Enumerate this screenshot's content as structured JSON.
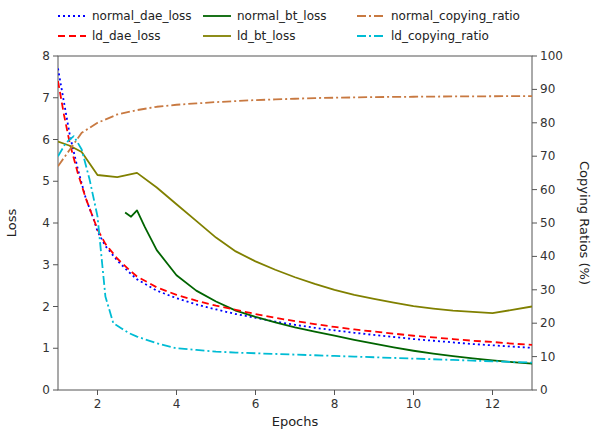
{
  "chart_data": {
    "type": "line",
    "xlabel": "Epochs",
    "ylabel": "Loss",
    "y2label": "Copying Ratios (%)",
    "xlim": [
      1,
      13
    ],
    "xticks": [
      2,
      4,
      6,
      8,
      10,
      12
    ],
    "ylim": [
      0,
      8
    ],
    "yticks": [
      0,
      1,
      2,
      3,
      4,
      5,
      6,
      7,
      8
    ],
    "y2lim": [
      0,
      100
    ],
    "y2ticks": [
      0,
      10,
      20,
      30,
      40,
      50,
      60,
      70,
      80,
      90,
      100
    ],
    "grid": false,
    "legend": "top",
    "series": [
      {
        "name": "normal_dae_loss",
        "color": "#0000ff",
        "line_style": "dotted",
        "x": [
          1.0,
          1.15,
          1.3,
          1.5,
          1.7,
          1.9,
          2.0,
          2.2,
          2.5,
          2.8,
          3.0,
          3.5,
          4.0,
          4.5,
          5.0,
          5.5,
          6.0,
          6.5,
          7.0,
          7.5,
          8.0,
          8.5,
          9.0,
          9.5,
          10.0,
          10.5,
          11.0,
          11.5,
          12.0,
          12.5,
          13.0
        ],
        "values": [
          7.7,
          6.9,
          6.1,
          5.3,
          4.6,
          4.1,
          3.8,
          3.45,
          3.1,
          2.82,
          2.65,
          2.38,
          2.2,
          2.05,
          1.93,
          1.82,
          1.73,
          1.64,
          1.56,
          1.49,
          1.43,
          1.37,
          1.32,
          1.27,
          1.22,
          1.18,
          1.14,
          1.1,
          1.07,
          1.04,
          1.01
        ]
      },
      {
        "name": "normal_bt_loss",
        "color": "#006400",
        "line_style": "solid",
        "x": [
          2.7,
          2.85,
          3.0,
          3.2,
          3.5,
          4.0,
          4.5,
          5.0,
          5.5,
          6.0,
          6.5,
          7.0,
          7.5,
          8.0,
          8.5,
          9.0,
          9.5,
          10.0,
          10.5,
          11.0,
          11.5,
          12.0,
          12.5,
          13.0
        ],
        "values": [
          4.25,
          4.15,
          4.3,
          3.9,
          3.35,
          2.75,
          2.38,
          2.12,
          1.9,
          1.75,
          1.62,
          1.5,
          1.4,
          1.3,
          1.2,
          1.11,
          1.02,
          0.94,
          0.87,
          0.81,
          0.76,
          0.71,
          0.67,
          0.63
        ]
      },
      {
        "name": "ld_dae_loss",
        "color": "#ff0000",
        "line_style": "dashed",
        "x": [
          1.0,
          1.15,
          1.3,
          1.5,
          1.7,
          1.9,
          2.0,
          2.2,
          2.5,
          2.8,
          3.0,
          3.5,
          4.0,
          4.5,
          5.0,
          5.5,
          6.0,
          6.5,
          7.0,
          7.5,
          8.0,
          8.5,
          9.0,
          9.5,
          10.0,
          10.5,
          11.0,
          11.5,
          12.0,
          12.5,
          13.0
        ],
        "values": [
          7.4,
          6.6,
          5.9,
          5.2,
          4.6,
          4.1,
          3.85,
          3.5,
          3.15,
          2.88,
          2.72,
          2.46,
          2.28,
          2.14,
          2.02,
          1.92,
          1.82,
          1.73,
          1.65,
          1.58,
          1.51,
          1.45,
          1.4,
          1.35,
          1.3,
          1.26,
          1.22,
          1.18,
          1.15,
          1.11,
          1.08
        ]
      },
      {
        "name": "ld_bt_loss",
        "color": "#808000",
        "line_style": "solid",
        "x": [
          1.0,
          1.3,
          1.6,
          2.0,
          2.5,
          3.0,
          3.5,
          4.0,
          4.5,
          5.0,
          5.5,
          6.0,
          6.5,
          7.0,
          7.5,
          8.0,
          8.5,
          9.0,
          9.5,
          10.0,
          10.5,
          11.0,
          11.5,
          12.0,
          12.5,
          13.0
        ],
        "values": [
          5.95,
          5.85,
          5.7,
          5.15,
          5.1,
          5.2,
          4.85,
          4.45,
          4.05,
          3.65,
          3.32,
          3.08,
          2.88,
          2.7,
          2.54,
          2.4,
          2.28,
          2.18,
          2.09,
          2.01,
          1.95,
          1.9,
          1.87,
          1.84,
          1.92,
          2.0
        ]
      },
      {
        "name": "normal_copying_ratio",
        "color": "#c87941",
        "line_style": "dashdot",
        "axis": "y2",
        "x": [
          1.0,
          1.3,
          1.6,
          2.0,
          2.5,
          3.0,
          3.5,
          4.0,
          4.5,
          5.0,
          5.5,
          6.0,
          6.5,
          7.0,
          7.5,
          8.0,
          8.5,
          9.0,
          9.5,
          10.0,
          10.5,
          11.0,
          11.5,
          12.0,
          12.5,
          13.0
        ],
        "values": [
          67,
          72,
          77,
          80,
          82.5,
          83.8,
          84.8,
          85.4,
          85.8,
          86.2,
          86.5,
          86.8,
          87.0,
          87.2,
          87.4,
          87.5,
          87.6,
          87.7,
          87.75,
          87.8,
          87.85,
          87.9,
          87.92,
          87.95,
          88.0,
          88.0
        ]
      },
      {
        "name": "ld_copying_ratio",
        "color": "#00bcd4",
        "line_style": "dashdot",
        "axis": "y2",
        "x": [
          1.0,
          1.2,
          1.4,
          1.6,
          1.8,
          2.0,
          2.1,
          2.2,
          2.4,
          2.6,
          2.8,
          3.0,
          3.5,
          4.0,
          4.5,
          5.0,
          5.5,
          6.0,
          6.5,
          7.0,
          7.5,
          8.0,
          8.5,
          9.0,
          9.5,
          10.0,
          10.5,
          11.0,
          11.5,
          12.0,
          12.5,
          13.0
        ],
        "values": [
          70,
          74,
          76,
          72,
          63,
          52,
          40,
          28,
          20,
          18.5,
          17,
          16,
          14,
          12.5,
          12,
          11.5,
          11.2,
          11.0,
          10.8,
          10.6,
          10.4,
          10.2,
          10.0,
          9.8,
          9.6,
          9.4,
          9.2,
          9.0,
          8.8,
          8.6,
          8.4,
          8.2
        ]
      }
    ]
  }
}
